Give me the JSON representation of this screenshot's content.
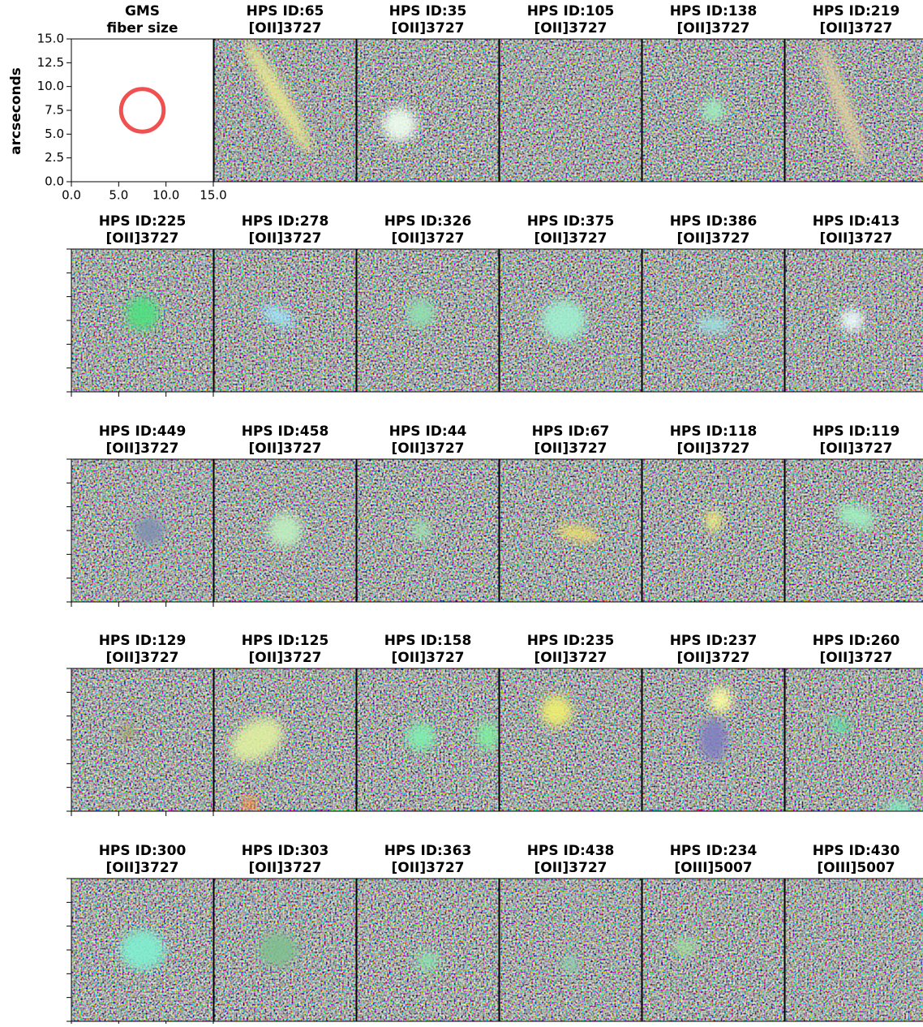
{
  "figure": {
    "panels": [
      {
        "title": "GMS",
        "subtitle": "fiber size"
      },
      {
        "title": "HPS ID:65",
        "subtitle": "[OII]3727"
      },
      {
        "title": "HPS ID:35",
        "subtitle": "[OII]3727"
      },
      {
        "title": "HPS ID:105",
        "subtitle": "[OII]3727"
      },
      {
        "title": "HPS ID:138",
        "subtitle": "[OII]3727"
      },
      {
        "title": "HPS ID:219",
        "subtitle": "[OII]3727"
      },
      {
        "title": "HPS ID:225",
        "subtitle": "[OII]3727"
      },
      {
        "title": "HPS ID:278",
        "subtitle": "[OII]3727"
      },
      {
        "title": "HPS ID:326",
        "subtitle": "[OII]3727"
      },
      {
        "title": "HPS ID:375",
        "subtitle": "[OII]3727"
      },
      {
        "title": "HPS ID:386",
        "subtitle": "[OII]3727"
      },
      {
        "title": "HPS ID:413",
        "subtitle": "[OII]3727"
      },
      {
        "title": "HPS ID:449",
        "subtitle": "[OII]3727"
      },
      {
        "title": "HPS ID:458",
        "subtitle": "[OII]3727"
      },
      {
        "title": "HPS ID:44",
        "subtitle": "[OII]3727"
      },
      {
        "title": "HPS ID:67",
        "subtitle": "[OII]3727"
      },
      {
        "title": "HPS ID:118",
        "subtitle": "[OII]3727"
      },
      {
        "title": "HPS ID:119",
        "subtitle": "[OII]3727"
      },
      {
        "title": "HPS ID:129",
        "subtitle": "[OII]3727"
      },
      {
        "title": "HPS ID:125",
        "subtitle": "[OII]3727"
      },
      {
        "title": "HPS ID:158",
        "subtitle": "[OII]3727"
      },
      {
        "title": "HPS ID:235",
        "subtitle": "[OII]3727"
      },
      {
        "title": "HPS ID:237",
        "subtitle": "[OII]3727"
      },
      {
        "title": "HPS ID:260",
        "subtitle": "[OII]3727"
      },
      {
        "title": "HPS ID:300",
        "subtitle": "[OII]3727"
      },
      {
        "title": "HPS ID:303",
        "subtitle": "[OII]3727"
      },
      {
        "title": "HPS ID:363",
        "subtitle": "[OII]3727"
      },
      {
        "title": "HPS ID:438",
        "subtitle": "[OII]3727"
      },
      {
        "title": "HPS ID:234",
        "subtitle": "[OIII]5007"
      },
      {
        "title": "HPS ID:430",
        "subtitle": "[OIII]5007"
      }
    ],
    "fiber_panel": {
      "ylabel": "arcseconds",
      "xlim": [
        0,
        15
      ],
      "ylim": [
        0,
        15
      ],
      "xticks": [
        {
          "value": 0,
          "label": "0.0"
        },
        {
          "value": 5,
          "label": "5.0"
        },
        {
          "value": 10,
          "label": "10.0"
        },
        {
          "value": 15,
          "label": "15.0"
        }
      ],
      "yticks": [
        {
          "value": 0,
          "label": "0.0"
        },
        {
          "value": 2.5,
          "label": "2.5"
        },
        {
          "value": 5,
          "label": "5.0"
        },
        {
          "value": 7.5,
          "label": "7.5"
        },
        {
          "value": 10,
          "label": "10.0"
        },
        {
          "value": 12.5,
          "label": "12.5"
        },
        {
          "value": 15,
          "label": "15.0"
        }
      ],
      "circle": {
        "x": 7.5,
        "y": 7.5,
        "radius": 2.25,
        "color": "#f05050"
      }
    }
  }
}
